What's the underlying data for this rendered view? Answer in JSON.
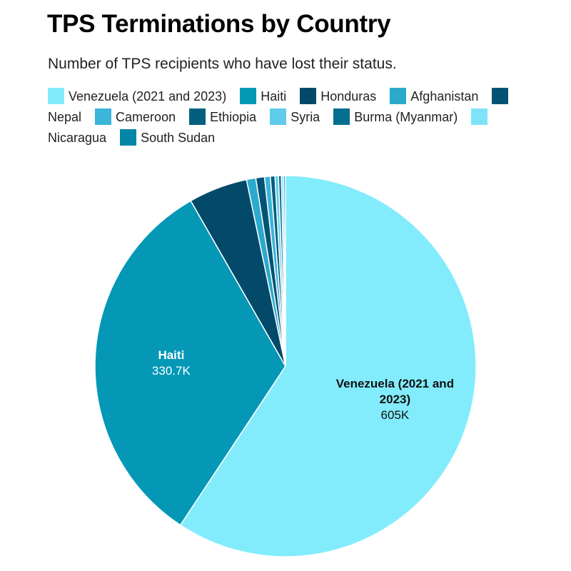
{
  "chart_data": {
    "type": "pie",
    "title": "TPS Terminations by Country",
    "subtitle": "Number of TPS recipients who have lost their status.",
    "legend_position": "top",
    "slices": [
      {
        "label": "Venezuela (2021 and 2023)",
        "value": 605000,
        "display_value": "605K",
        "color": "#82ecfd",
        "label_color": "#111111"
      },
      {
        "label": "Haiti",
        "value": 330700,
        "display_value": "330.7K",
        "color": "#0498b6",
        "label_color": "#ffffff"
      },
      {
        "label": "Honduras",
        "value": 51000,
        "color": "#034a6a"
      },
      {
        "label": "Afghanistan",
        "value": 8000,
        "color": "#2aaacd"
      },
      {
        "label": "Nepal",
        "value": 7500,
        "color": "#025374"
      },
      {
        "label": "Cameroon",
        "value": 5000,
        "color": "#3bb5d8"
      },
      {
        "label": "Ethiopia",
        "value": 4000,
        "color": "#035f80"
      },
      {
        "label": "Syria",
        "value": 3000,
        "color": "#60cbea"
      },
      {
        "label": "Burma (Myanmar)",
        "value": 2500,
        "color": "#046e8e"
      },
      {
        "label": "Nicaragua",
        "value": 2000,
        "color": "#7ee3f8"
      },
      {
        "label": "South Sudan",
        "value": 1500,
        "color": "#0386a6"
      }
    ]
  }
}
